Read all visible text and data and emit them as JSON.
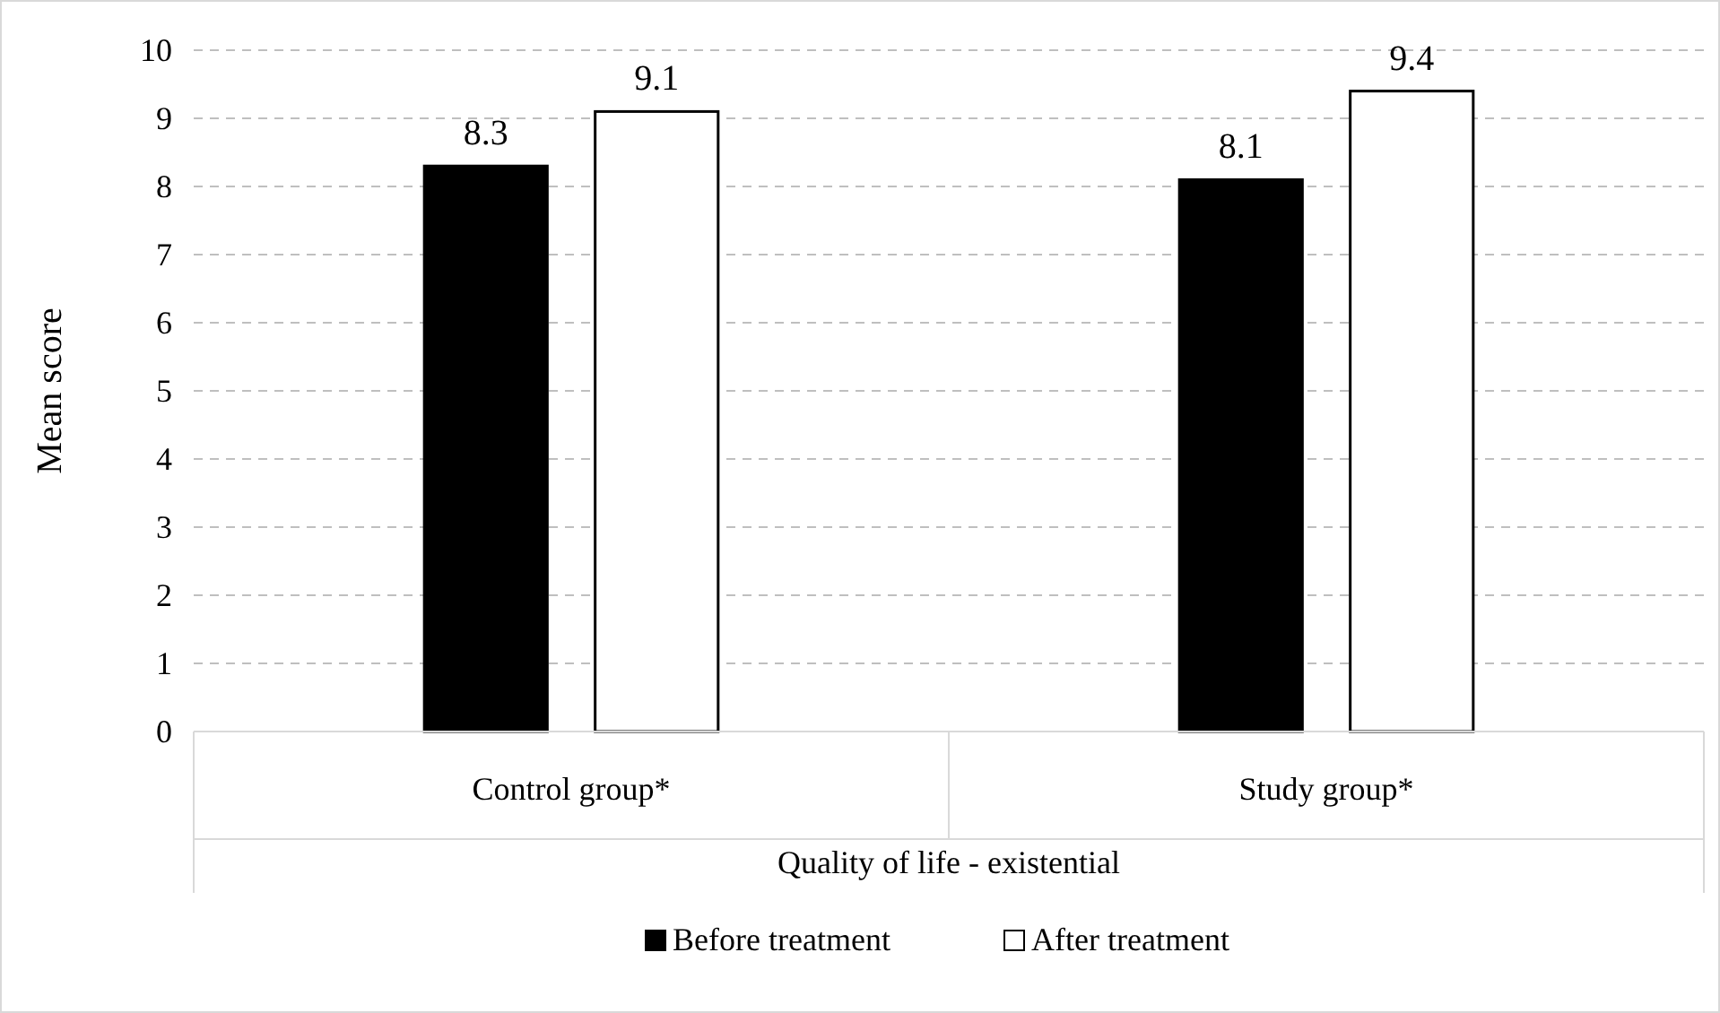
{
  "chart_data": {
    "type": "bar",
    "xlabel": "Quality of life - existential",
    "ylabel": "Mean score",
    "categories": [
      "Control group*",
      "Study group*"
    ],
    "series": [
      {
        "name": "Before treatment",
        "color": "#000000",
        "values": [
          8.3,
          8.1
        ]
      },
      {
        "name": "After treatment",
        "color": "#ffffff",
        "values": [
          9.1,
          9.4
        ]
      }
    ],
    "ylim": [
      0,
      10
    ],
    "yticks": [
      0,
      1,
      2,
      3,
      4,
      5,
      6,
      7,
      8,
      9,
      10
    ],
    "grid": "y",
    "data_labels": true,
    "legend": "bottom"
  }
}
